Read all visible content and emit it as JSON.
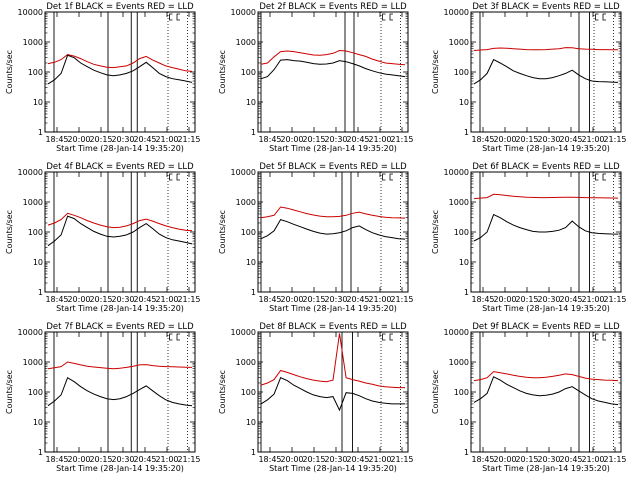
{
  "chart_data": [
    {
      "type": "line",
      "title": "Det 1f  BLACK = Events  RED = LLD",
      "xlabel": "Start Time (28-Jan-14 19:35:20)",
      "ylabel": "Counts/sec",
      "y_log": true,
      "ylim": [
        1,
        10000
      ],
      "x_ticks": [
        "18:45",
        "20:00",
        "20:15",
        "20:30",
        "20:45",
        "21:00",
        "21:15"
      ],
      "y_ticks": [
        "1",
        "10",
        "100",
        "1000",
        "10000"
      ],
      "series": [
        {
          "color": "#cc0000",
          "values": [
            190,
            210,
            260,
            380,
            340,
            280,
            220,
            180,
            160,
            145,
            140,
            150,
            160,
            200,
            280,
            330,
            250,
            200,
            160,
            140,
            125,
            110,
            105
          ]
        },
        {
          "color": "#000000",
          "values": [
            40,
            55,
            90,
            360,
            300,
            200,
            150,
            115,
            95,
            80,
            75,
            80,
            90,
            110,
            150,
            210,
            140,
            90,
            70,
            60,
            55,
            50,
            45
          ]
        }
      ],
      "solid_lines": [
        0.06,
        0.42,
        0.575,
        0.615
      ],
      "dotted_lines": [
        0.82,
        0.95
      ]
    },
    {
      "type": "line",
      "title": "Det 2f  BLACK = Events  RED = LLD",
      "xlabel": "Start Time (28-Jan-14 19:35:20)",
      "ylabel": "Counts/sec",
      "y_log": true,
      "ylim": [
        1,
        10000
      ],
      "x_ticks": [
        "18:45",
        "20:00",
        "20:15",
        "20:30",
        "20:45",
        "21:00",
        "21:15"
      ],
      "y_ticks": [
        "1",
        "10",
        "100",
        "1000",
        "10000"
      ],
      "series": [
        {
          "color": "#cc0000",
          "values": [
            180,
            200,
            320,
            480,
            500,
            480,
            440,
            400,
            370,
            360,
            380,
            420,
            520,
            500,
            440,
            380,
            330,
            270,
            230,
            200,
            190,
            180,
            175
          ]
        },
        {
          "color": "#000000",
          "values": [
            60,
            70,
            120,
            250,
            260,
            240,
            230,
            210,
            190,
            180,
            185,
            200,
            240,
            220,
            190,
            160,
            130,
            110,
            95,
            85,
            80,
            75,
            70
          ]
        }
      ],
      "solid_lines": [
        0.02,
        0.58,
        0.64
      ],
      "dotted_lines": [
        0.82,
        0.95
      ]
    },
    {
      "type": "line",
      "title": "Det 3f  BLACK = Events  RED = LLD",
      "xlabel": "Start Time (28-Jan-14 19:35:20)",
      "ylabel": "Counts/sec",
      "y_log": true,
      "ylim": [
        1,
        10000
      ],
      "x_ticks": [
        "18:45",
        "20:00",
        "20:15",
        "20:30",
        "20:45",
        "21:00",
        "21:15"
      ],
      "y_ticks": [
        "1",
        "10",
        "100",
        "1000",
        "10000"
      ],
      "series": [
        {
          "color": "#cc0000",
          "values": [
            520,
            540,
            560,
            610,
            630,
            620,
            600,
            580,
            560,
            550,
            550,
            560,
            580,
            600,
            650,
            640,
            600,
            580,
            570,
            560,
            560,
            555,
            550
          ]
        },
        {
          "color": "#000000",
          "values": [
            40,
            55,
            90,
            260,
            200,
            150,
            110,
            90,
            75,
            65,
            60,
            60,
            65,
            75,
            90,
            115,
            80,
            60,
            50,
            48,
            47,
            46,
            45
          ]
        }
      ],
      "solid_lines": [
        0.06,
        0.72,
        0.79
      ],
      "dotted_lines": [
        0.82,
        0.95
      ]
    },
    {
      "type": "line",
      "title": "Det 4f  BLACK = Events  RED = LLD",
      "xlabel": "Start Time (28-Jan-14 19:35:20)",
      "ylabel": "Counts/sec",
      "y_log": true,
      "ylim": [
        1,
        10000
      ],
      "x_ticks": [
        "18:45",
        "20:00",
        "20:15",
        "20:30",
        "20:45",
        "21:00",
        "21:15"
      ],
      "y_ticks": [
        "1",
        "10",
        "100",
        "1000",
        "10000"
      ],
      "series": [
        {
          "color": "#cc0000",
          "values": [
            170,
            200,
            260,
            420,
            360,
            300,
            240,
            200,
            170,
            150,
            140,
            145,
            160,
            190,
            240,
            270,
            230,
            190,
            160,
            140,
            125,
            115,
            110
          ]
        },
        {
          "color": "#000000",
          "values": [
            35,
            50,
            80,
            340,
            280,
            190,
            140,
            105,
            85,
            72,
            68,
            72,
            80,
            100,
            140,
            190,
            130,
            85,
            65,
            55,
            50,
            45,
            40
          ]
        }
      ],
      "solid_lines": [
        0.06,
        0.42,
        0.575,
        0.615
      ],
      "dotted_lines": [
        0.82,
        0.95
      ]
    },
    {
      "type": "line",
      "title": "Det 5f  BLACK = Events  RED = LLD",
      "xlabel": "Start Time (28-Jan-14 19:35:20)",
      "ylabel": "Counts/sec",
      "y_log": true,
      "ylim": [
        1,
        10000
      ],
      "x_ticks": [
        "18:45",
        "20:00",
        "20:15",
        "20:30",
        "20:45",
        "21:00",
        "21:15"
      ],
      "y_ticks": [
        "1",
        "10",
        "100",
        "1000",
        "10000"
      ],
      "series": [
        {
          "color": "#cc0000",
          "values": [
            300,
            320,
            360,
            680,
            620,
            540,
            470,
            410,
            370,
            340,
            320,
            320,
            330,
            360,
            420,
            460,
            400,
            360,
            330,
            310,
            300,
            295,
            290
          ]
        },
        {
          "color": "#000000",
          "values": [
            60,
            75,
            110,
            260,
            220,
            180,
            150,
            125,
            105,
            92,
            85,
            88,
            95,
            110,
            140,
            160,
            120,
            95,
            80,
            70,
            65,
            60,
            58
          ]
        }
      ],
      "solid_lines": [
        0.02,
        0.56,
        0.62
      ],
      "dotted_lines": [
        0.82,
        0.95
      ]
    },
    {
      "type": "line",
      "title": "Det 6f  BLACK = Events  RED = LLD",
      "xlabel": "Start Time (28-Jan-14 19:35:20)",
      "ylabel": "Counts/sec",
      "y_log": true,
      "ylim": [
        1,
        10000
      ],
      "x_ticks": [
        "18:45",
        "20:00",
        "20:15",
        "20:30",
        "20:45",
        "21:00",
        "21:15"
      ],
      "y_ticks": [
        "1",
        "10",
        "100",
        "1000",
        "10000"
      ],
      "series": [
        {
          "color": "#cc0000",
          "values": [
            1300,
            1350,
            1400,
            1800,
            1750,
            1650,
            1550,
            1500,
            1450,
            1420,
            1400,
            1400,
            1410,
            1420,
            1440,
            1450,
            1420,
            1400,
            1390,
            1380,
            1370,
            1360,
            1350
          ]
        },
        {
          "color": "#000000",
          "values": [
            50,
            65,
            100,
            380,
            300,
            220,
            170,
            140,
            120,
            105,
            100,
            100,
            105,
            115,
            140,
            230,
            150,
            110,
            95,
            90,
            88,
            86,
            85
          ]
        }
      ],
      "solid_lines": [
        0.06,
        0.72,
        0.79
      ],
      "dotted_lines": [
        0.82,
        0.95
      ]
    },
    {
      "type": "line",
      "title": "Det 7f  BLACK = Events  RED = LLD",
      "xlabel": "Start Time (28-Jan-14 19:35:20)",
      "ylabel": "Counts/sec",
      "y_log": true,
      "ylim": [
        1,
        10000
      ],
      "x_ticks": [
        "18:45",
        "20:00",
        "20:15",
        "20:30",
        "20:45",
        "21:00",
        "21:15"
      ],
      "y_ticks": [
        "1",
        "10",
        "100",
        "1000",
        "10000"
      ],
      "series": [
        {
          "color": "#cc0000",
          "values": [
            600,
            640,
            700,
            1000,
            900,
            800,
            720,
            680,
            650,
            620,
            600,
            620,
            660,
            720,
            800,
            820,
            760,
            720,
            700,
            690,
            680,
            670,
            660
          ]
        },
        {
          "color": "#000000",
          "values": [
            35,
            50,
            80,
            300,
            220,
            150,
            110,
            85,
            70,
            60,
            56,
            60,
            70,
            90,
            120,
            160,
            110,
            75,
            55,
            45,
            40,
            37,
            35
          ]
        }
      ],
      "solid_lines": [
        0.06,
        0.42,
        0.575,
        0.615
      ],
      "dotted_lines": [
        0.82,
        0.95
      ]
    },
    {
      "type": "line",
      "title": "Det 8f  BLACK = Events  RED = LLD",
      "xlabel": "Start Time (28-Jan-14 19:35:20)",
      "ylabel": "Counts/sec",
      "y_log": true,
      "ylim": [
        1,
        10000
      ],
      "x_ticks": [
        "18:45",
        "20:00",
        "20:15",
        "20:30",
        "20:45",
        "21:00",
        "21:15"
      ],
      "y_ticks": [
        "1",
        "10",
        "100",
        "1000",
        "10000"
      ],
      "series": [
        {
          "color": "#cc0000",
          "values": [
            170,
            200,
            260,
            520,
            450,
            380,
            320,
            280,
            250,
            230,
            220,
            250,
            9000,
            300,
            260,
            230,
            200,
            180,
            160,
            150,
            145,
            140,
            140
          ]
        },
        {
          "color": "#000000",
          "values": [
            40,
            55,
            85,
            300,
            240,
            170,
            130,
            100,
            80,
            70,
            65,
            70,
            25,
            95,
            90,
            75,
            60,
            50,
            45,
            42,
            40,
            40,
            40
          ]
        }
      ],
      "solid_lines": [
        0.02,
        0.56,
        0.63
      ],
      "dotted_lines": [
        0.82,
        0.95
      ]
    },
    {
      "type": "line",
      "title": "Det 9f  BLACK = Events  RED = LLD",
      "xlabel": "Start Time (28-Jan-14 19:35:20)",
      "ylabel": "Counts/sec",
      "y_log": true,
      "ylim": [
        1,
        10000
      ],
      "x_ticks": [
        "18:45",
        "20:00",
        "20:15",
        "20:30",
        "20:45",
        "21:00",
        "21:15"
      ],
      "y_ticks": [
        "1",
        "10",
        "100",
        "1000",
        "10000"
      ],
      "series": [
        {
          "color": "#cc0000",
          "values": [
            240,
            260,
            300,
            480,
            440,
            400,
            360,
            330,
            310,
            300,
            300,
            310,
            330,
            360,
            400,
            380,
            330,
            290,
            270,
            260,
            250,
            245,
            240
          ]
        },
        {
          "color": "#000000",
          "values": [
            45,
            60,
            90,
            320,
            250,
            180,
            140,
            110,
            90,
            80,
            75,
            78,
            85,
            100,
            130,
            150,
            110,
            80,
            60,
            50,
            45,
            40,
            38
          ]
        }
      ],
      "solid_lines": [
        0.06,
        0.72,
        0.79
      ],
      "dotted_lines": [
        0.82,
        0.95
      ]
    }
  ]
}
